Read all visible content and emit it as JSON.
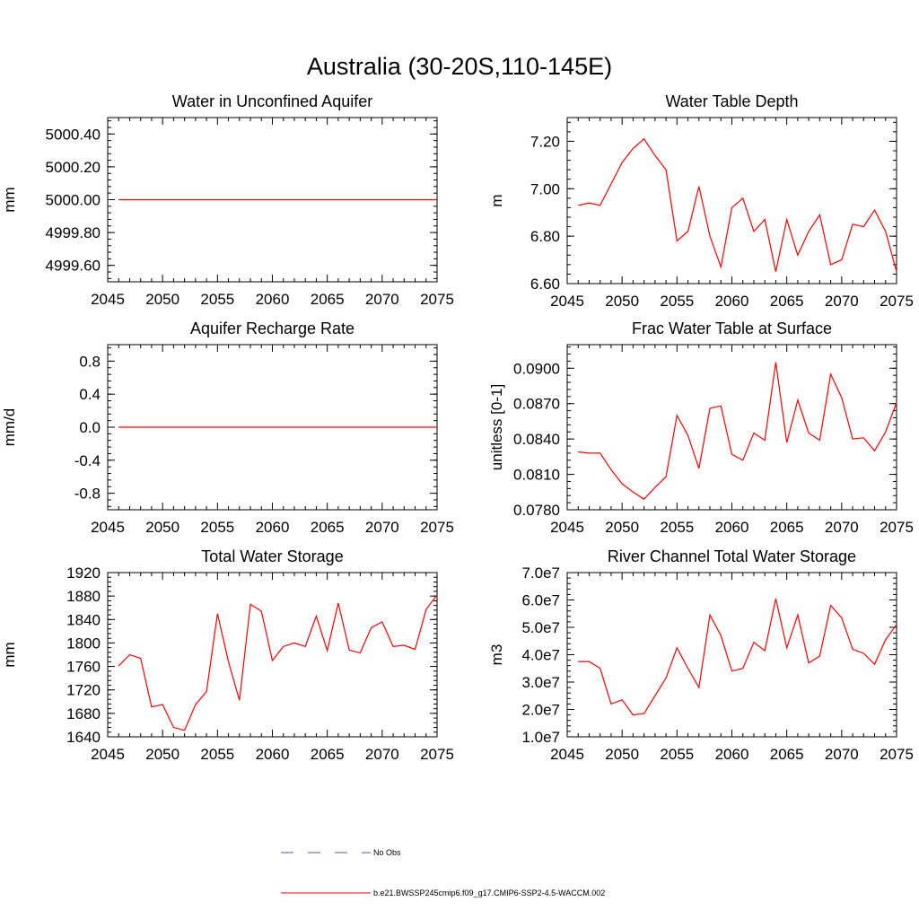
{
  "figure_title": "Australia (30-20S,110-145E)",
  "chart_data": [
    {
      "type": "line",
      "title": "Water in Unconfined Aquifer",
      "ylabel": "mm",
      "xlabel": "",
      "xlim": [
        2045,
        2075
      ],
      "ylim": [
        4999.5,
        5000.5
      ],
      "x_ticks": [
        2045,
        2050,
        2055,
        2060,
        2065,
        2070,
        2075
      ],
      "y_ticks": [
        4999.6,
        4999.8,
        5000.0,
        5000.2,
        5000.4
      ],
      "y_tick_labels": [
        "4999.60",
        "4999.80",
        "5000.00",
        "5000.20",
        "5000.40"
      ],
      "x": [
        2046,
        2047,
        2048,
        2049,
        2050,
        2051,
        2052,
        2053,
        2054,
        2055,
        2056,
        2057,
        2058,
        2059,
        2060,
        2061,
        2062,
        2063,
        2064,
        2065,
        2066,
        2067,
        2068,
        2069,
        2070,
        2071,
        2072,
        2073,
        2074,
        2075
      ],
      "series": [
        {
          "name": "b.e21.BWSSP245cmip6.f09_g17.CMIP6-SSP2-4.5-WACCM.002",
          "color": "#ff0000",
          "values": [
            5000,
            5000,
            5000,
            5000,
            5000,
            5000,
            5000,
            5000,
            5000,
            5000,
            5000,
            5000,
            5000,
            5000,
            5000,
            5000,
            5000,
            5000,
            5000,
            5000,
            5000,
            5000,
            5000,
            5000,
            5000,
            5000,
            5000,
            5000,
            5000,
            5000
          ]
        }
      ]
    },
    {
      "type": "line",
      "title": "Water Table Depth",
      "ylabel": "m",
      "xlabel": "",
      "xlim": [
        2045,
        2075
      ],
      "ylim": [
        6.6,
        7.3
      ],
      "x_ticks": [
        2045,
        2050,
        2055,
        2060,
        2065,
        2070,
        2075
      ],
      "y_ticks": [
        6.6,
        6.8,
        7.0,
        7.2
      ],
      "y_tick_labels": [
        "6.60",
        "6.80",
        "7.00",
        "7.20"
      ],
      "x": [
        2046,
        2047,
        2048,
        2049,
        2050,
        2051,
        2052,
        2053,
        2054,
        2055,
        2056,
        2057,
        2058,
        2059,
        2060,
        2061,
        2062,
        2063,
        2064,
        2065,
        2066,
        2067,
        2068,
        2069,
        2070,
        2071,
        2072,
        2073,
        2074,
        2075
      ],
      "series": [
        {
          "name": "b.e21.BWSSP245cmip6.f09_g17.CMIP6-SSP2-4.5-WACCM.002",
          "color": "#ff0000",
          "values": [
            6.93,
            6.94,
            6.93,
            7.02,
            7.11,
            7.17,
            7.21,
            7.14,
            7.08,
            6.78,
            6.82,
            7.01,
            6.8,
            6.67,
            6.92,
            6.96,
            6.82,
            6.87,
            6.65,
            6.87,
            6.72,
            6.82,
            6.89,
            6.68,
            6.7,
            6.85,
            6.84,
            6.91,
            6.82,
            6.65
          ]
        }
      ]
    },
    {
      "type": "line",
      "title": "Aquifer Recharge Rate",
      "ylabel": "mm/d",
      "xlabel": "",
      "xlim": [
        2045,
        2075
      ],
      "ylim": [
        -1.0,
        1.0
      ],
      "x_ticks": [
        2045,
        2050,
        2055,
        2060,
        2065,
        2070,
        2075
      ],
      "y_ticks": [
        -0.8,
        -0.4,
        0.0,
        0.4,
        0.8
      ],
      "y_tick_labels": [
        "-0.8",
        "-0.4",
        "0.0",
        "0.4",
        "0.8"
      ],
      "x": [
        2046,
        2047,
        2048,
        2049,
        2050,
        2051,
        2052,
        2053,
        2054,
        2055,
        2056,
        2057,
        2058,
        2059,
        2060,
        2061,
        2062,
        2063,
        2064,
        2065,
        2066,
        2067,
        2068,
        2069,
        2070,
        2071,
        2072,
        2073,
        2074,
        2075
      ],
      "series": [
        {
          "name": "b.e21.BWSSP245cmip6.f09_g17.CMIP6-SSP2-4.5-WACCM.002",
          "color": "#ff0000",
          "values": [
            0,
            0,
            0,
            0,
            0,
            0,
            0,
            0,
            0,
            0,
            0,
            0,
            0,
            0,
            0,
            0,
            0,
            0,
            0,
            0,
            0,
            0,
            0,
            0,
            0,
            0,
            0,
            0,
            0,
            0
          ]
        }
      ]
    },
    {
      "type": "line",
      "title": "Frac Water Table at Surface",
      "ylabel": "unitless [0-1]",
      "xlabel": "",
      "xlim": [
        2045,
        2075
      ],
      "ylim": [
        0.078,
        0.092
      ],
      "x_ticks": [
        2045,
        2050,
        2055,
        2060,
        2065,
        2070,
        2075
      ],
      "y_ticks": [
        0.078,
        0.081,
        0.084,
        0.087,
        0.09
      ],
      "y_tick_labels": [
        "0.0780",
        "0.0810",
        "0.0840",
        "0.0870",
        "0.0900"
      ],
      "x": [
        2046,
        2047,
        2048,
        2049,
        2050,
        2051,
        2052,
        2053,
        2054,
        2055,
        2056,
        2057,
        2058,
        2059,
        2060,
        2061,
        2062,
        2063,
        2064,
        2065,
        2066,
        2067,
        2068,
        2069,
        2070,
        2071,
        2072,
        2073,
        2074,
        2075
      ],
      "series": [
        {
          "name": "b.e21.BWSSP245cmip6.f09_g17.CMIP6-SSP2-4.5-WACCM.002",
          "color": "#ff0000",
          "values": [
            0.0829,
            0.0828,
            0.0828,
            0.0814,
            0.0802,
            0.0795,
            0.0789,
            0.0799,
            0.0808,
            0.086,
            0.0843,
            0.0815,
            0.0866,
            0.0868,
            0.0827,
            0.0822,
            0.0845,
            0.0839,
            0.0905,
            0.0837,
            0.0873,
            0.0845,
            0.0839,
            0.0895,
            0.0875,
            0.084,
            0.0841,
            0.083,
            0.0846,
            0.0871
          ]
        }
      ]
    },
    {
      "type": "line",
      "title": "Total Water Storage",
      "ylabel": "mm",
      "xlabel": "",
      "xlim": [
        2045,
        2075
      ],
      "ylim": [
        1640,
        1920
      ],
      "x_ticks": [
        2045,
        2050,
        2055,
        2060,
        2065,
        2070,
        2075
      ],
      "y_ticks": [
        1640,
        1680,
        1720,
        1760,
        1800,
        1840,
        1880,
        1920
      ],
      "y_tick_labels": [
        "1640",
        "1680",
        "1720",
        "1760",
        "1800",
        "1840",
        "1880",
        "1920"
      ],
      "x": [
        2046,
        2047,
        2048,
        2049,
        2050,
        2051,
        2052,
        2053,
        2054,
        2055,
        2056,
        2057,
        2058,
        2059,
        2060,
        2061,
        2062,
        2063,
        2064,
        2065,
        2066,
        2067,
        2068,
        2069,
        2070,
        2071,
        2072,
        2073,
        2074,
        2075
      ],
      "series": [
        {
          "name": "b.e21.BWSSP245cmip6.f09_g17.CMIP6-SSP2-4.5-WACCM.002",
          "color": "#ff0000",
          "values": [
            1761,
            1780,
            1774,
            1691,
            1695,
            1656,
            1651,
            1695,
            1717,
            1850,
            1768,
            1702,
            1866,
            1854,
            1770,
            1794,
            1800,
            1794,
            1846,
            1787,
            1868,
            1788,
            1783,
            1826,
            1836,
            1794,
            1796,
            1789,
            1857,
            1882
          ]
        }
      ]
    },
    {
      "type": "line",
      "title": "River Channel Total Water Storage",
      "ylabel": "m3",
      "xlabel": "",
      "xlim": [
        2045,
        2075
      ],
      "ylim": [
        10000000,
        70000000
      ],
      "x_ticks": [
        2045,
        2050,
        2055,
        2060,
        2065,
        2070,
        2075
      ],
      "y_ticks": [
        10000000,
        20000000,
        30000000,
        40000000,
        50000000,
        60000000,
        70000000
      ],
      "y_tick_labels": [
        "1.0e7",
        "2.0e7",
        "3.0e7",
        "4.0e7",
        "5.0e7",
        "6.0e7",
        "7.0e7"
      ],
      "x": [
        2046,
        2047,
        2048,
        2049,
        2050,
        2051,
        2052,
        2053,
        2054,
        2055,
        2056,
        2057,
        2058,
        2059,
        2060,
        2061,
        2062,
        2063,
        2064,
        2065,
        2066,
        2067,
        2068,
        2069,
        2070,
        2071,
        2072,
        2073,
        2074,
        2075
      ],
      "series": [
        {
          "name": "b.e21.BWSSP245cmip6.f09_g17.CMIP6-SSP2-4.5-WACCM.002",
          "color": "#ff0000",
          "values": [
            37500000,
            37500000,
            35000000,
            22000000,
            23500000,
            18000000,
            18500000,
            25000000,
            31500000,
            42500000,
            35000000,
            28000000,
            54500000,
            47000000,
            34000000,
            35000000,
            44500000,
            41500000,
            60500000,
            42500000,
            54500000,
            37000000,
            39500000,
            58000000,
            53500000,
            42000000,
            40500000,
            36500000,
            45500000,
            51000000
          ]
        }
      ]
    }
  ],
  "legend": {
    "entries": [
      {
        "label": "No Obs",
        "color": "#4a5ec8",
        "style": "dashed"
      },
      {
        "label": "b.e21.BWSSP245cmip6.f09_g17.CMIP6-SSP2-4.5-WACCM.002",
        "color": "#ff0000",
        "style": "solid"
      }
    ]
  }
}
